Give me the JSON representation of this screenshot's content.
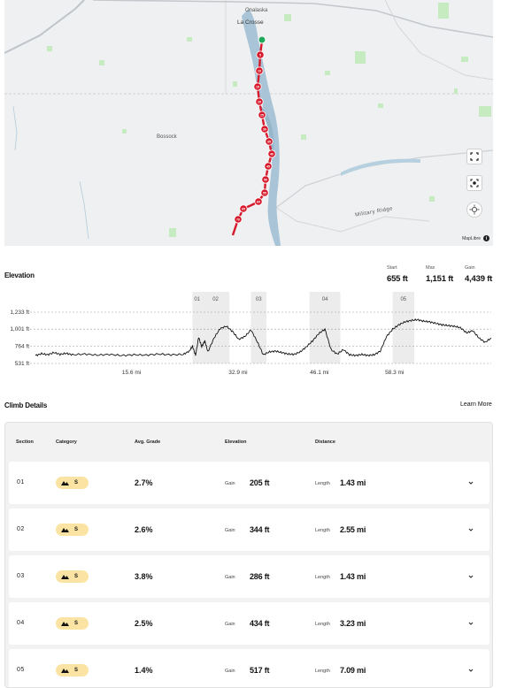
{
  "map": {
    "labels": {
      "onalaska": "Onalaska",
      "la_crosse": "La Crosse",
      "bosrock": "Bossock",
      "military_ridge": "Military Ridge"
    },
    "route_markers": [
      "5",
      "10",
      "15",
      "20",
      "25",
      "30",
      "35",
      "40",
      "45",
      "50",
      "55",
      "60",
      "65",
      "70"
    ],
    "attribution": "MapLibre",
    "controls": [
      "fullscreen-icon",
      "recenter-icon",
      "compass-icon"
    ],
    "colors": {
      "route": "#d7192c",
      "start": "#1ea85a",
      "water": "#a9c4d6",
      "park": "#c7ebc0"
    }
  },
  "elevation": {
    "title": "Elevation",
    "stats": {
      "start_label": "Start",
      "start_value": "655 ft",
      "max_label": "Max",
      "max_value": "1,151 ft",
      "gain_label": "Gain",
      "gain_value": "4,439 ft"
    },
    "y_ticks": [
      "1,233 ft",
      "1,001 ft",
      "764 ft",
      "531 ft"
    ],
    "x_ticks": [
      "15.6 mi",
      "32.9 mi",
      "46.1 mi",
      "58.3 mi"
    ],
    "sections": [
      "01",
      "02",
      "03",
      "04",
      "05"
    ]
  },
  "chart_data": {
    "type": "line",
    "title": "",
    "xlabel": "",
    "ylabel": "",
    "xlim": [
      0,
      74
    ],
    "ylim": [
      531,
      1233
    ],
    "x_unit": "mi",
    "y_unit": "ft",
    "climb_sections": [
      {
        "name": "01",
        "x": [
          25.5,
          27.0
        ]
      },
      {
        "name": "02",
        "x": [
          27.0,
          31.5
        ]
      },
      {
        "name": "03",
        "x": [
          35.0,
          37.5
        ]
      },
      {
        "name": "04",
        "x": [
          44.5,
          49.5
        ]
      },
      {
        "name": "05",
        "x": [
          58.0,
          61.5
        ]
      }
    ],
    "series": [
      {
        "x": [
          0,
          1,
          2,
          3,
          4,
          5,
          6,
          8,
          10,
          12,
          14,
          16,
          18,
          20,
          22,
          24,
          25,
          25.5,
          26,
          26.5,
          27,
          27.5,
          28,
          29,
          30,
          31,
          32,
          33,
          34,
          35,
          36,
          37,
          38,
          39,
          40,
          41,
          42,
          43,
          44,
          45,
          46,
          47,
          48,
          49,
          50,
          51,
          52,
          53,
          54,
          55,
          56,
          57,
          58,
          59,
          60,
          61,
          62,
          63,
          64,
          65,
          66,
          67,
          68,
          69,
          70,
          71,
          72,
          73,
          74
        ],
        "y": [
          640,
          665,
          650,
          680,
          655,
          670,
          650,
          660,
          645,
          655,
          640,
          650,
          645,
          660,
          650,
          655,
          700,
          770,
          640,
          890,
          760,
          840,
          690,
          880,
          1010,
          1040,
          970,
          860,
          900,
          990,
          830,
          650,
          690,
          700,
          680,
          660,
          655,
          690,
          760,
          840,
          940,
          1000,
          720,
          660,
          720,
          650,
          640,
          655,
          640,
          650,
          700,
          900,
          1000,
          1060,
          1100,
          1120,
          1130,
          1110,
          1100,
          1080,
          1060,
          1050,
          1040,
          1020,
          950,
          980,
          880,
          820,
          880
        ]
      }
    ]
  },
  "climb": {
    "title": "Climb Details",
    "learn_more": "Learn More",
    "headers": {
      "section": "Section",
      "category": "Category",
      "grade": "Avg. Grade",
      "elevation": "Elevation",
      "distance": "Distance"
    },
    "rows": [
      {
        "section": "01",
        "category": "S",
        "grade": "2.7%",
        "gain_label": "Gain",
        "gain": "205 ft",
        "length_label": "Length",
        "length": "1.43 mi"
      },
      {
        "section": "02",
        "category": "S",
        "grade": "2.6%",
        "gain_label": "Gain",
        "gain": "344 ft",
        "length_label": "Length",
        "length": "2.55 mi"
      },
      {
        "section": "03",
        "category": "S",
        "grade": "3.8%",
        "gain_label": "Gain",
        "gain": "286 ft",
        "length_label": "Length",
        "length": "1.43 mi"
      },
      {
        "section": "04",
        "category": "S",
        "grade": "2.5%",
        "gain_label": "Gain",
        "gain": "434 ft",
        "length_label": "Length",
        "length": "3.23 mi"
      },
      {
        "section": "05",
        "category": "S",
        "grade": "1.4%",
        "gain_label": "Gain",
        "gain": "517 ft",
        "length_label": "Length",
        "length": "7.09 mi"
      }
    ]
  }
}
